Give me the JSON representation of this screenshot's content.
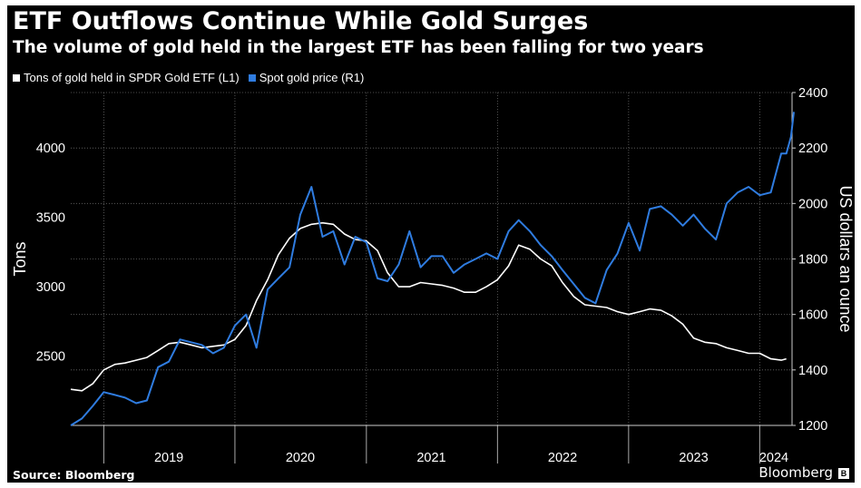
{
  "header": {
    "title": "ETF Outflows Continue While Gold Surges",
    "subtitle": "The volume of gold held in the largest ETF has been falling for two years"
  },
  "legend": [
    {
      "label": "Tons of gold held in SPDR Gold ETF  (L1)",
      "color": "#ffffff"
    },
    {
      "label": "Spot gold price (R1)",
      "color": "#2f7ce0"
    }
  ],
  "footer": {
    "source": "Source: Bloomberg",
    "brand": "Bloomberg"
  },
  "chart_data": {
    "type": "line",
    "title": "ETF Outflows Continue While Gold Surges",
    "subtitle": "The volume of gold held in the largest ETF has been falling for two years",
    "x_ticks": [
      "2019",
      "2020",
      "2021",
      "2022",
      "2023",
      "2024"
    ],
    "x_range": [
      "2018-10-01",
      "2024-03-31"
    ],
    "y_left": {
      "label": "Tons",
      "range": [
        2000,
        4400
      ],
      "ticks": [
        2500,
        3000,
        3500,
        4000
      ]
    },
    "y_right": {
      "label": "US dollars an ounce",
      "range": [
        1200,
        2400
      ],
      "ticks": [
        1200,
        1400,
        1600,
        1800,
        2000,
        2200,
        2400
      ]
    },
    "grid": true,
    "legend_position": "top-left",
    "series": [
      {
        "name": "Tons of gold held in SPDR Gold ETF  (L1)",
        "axis": "left",
        "color": "#ffffff",
        "points": [
          [
            "2018-10-01",
            2260
          ],
          [
            "2018-11-01",
            2250
          ],
          [
            "2018-12-01",
            2300
          ],
          [
            "2019-01-01",
            2400
          ],
          [
            "2019-02-01",
            2440
          ],
          [
            "2019-03-01",
            2450
          ],
          [
            "2019-04-01",
            2470
          ],
          [
            "2019-05-01",
            2490
          ],
          [
            "2019-06-01",
            2540
          ],
          [
            "2019-07-01",
            2590
          ],
          [
            "2019-08-01",
            2600
          ],
          [
            "2019-09-01",
            2580
          ],
          [
            "2019-10-01",
            2560
          ],
          [
            "2019-11-01",
            2570
          ],
          [
            "2019-12-01",
            2580
          ],
          [
            "2020-01-01",
            2620
          ],
          [
            "2020-02-01",
            2720
          ],
          [
            "2020-03-01",
            2900
          ],
          [
            "2020-04-01",
            3050
          ],
          [
            "2020-05-01",
            3230
          ],
          [
            "2020-06-01",
            3350
          ],
          [
            "2020-07-01",
            3420
          ],
          [
            "2020-08-01",
            3450
          ],
          [
            "2020-09-01",
            3460
          ],
          [
            "2020-10-01",
            3450
          ],
          [
            "2020-11-01",
            3380
          ],
          [
            "2020-12-01",
            3340
          ],
          [
            "2021-01-01",
            3330
          ],
          [
            "2021-02-01",
            3260
          ],
          [
            "2021-03-01",
            3100
          ],
          [
            "2021-04-01",
            3000
          ],
          [
            "2021-05-01",
            3000
          ],
          [
            "2021-06-01",
            3030
          ],
          [
            "2021-07-01",
            3020
          ],
          [
            "2021-08-01",
            3010
          ],
          [
            "2021-09-01",
            2990
          ],
          [
            "2021-10-01",
            2960
          ],
          [
            "2021-11-01",
            2960
          ],
          [
            "2021-12-01",
            3000
          ],
          [
            "2022-01-01",
            3050
          ],
          [
            "2022-02-01",
            3150
          ],
          [
            "2022-03-01",
            3300
          ],
          [
            "2022-04-01",
            3270
          ],
          [
            "2022-05-01",
            3200
          ],
          [
            "2022-06-01",
            3150
          ],
          [
            "2022-07-01",
            3030
          ],
          [
            "2022-08-01",
            2930
          ],
          [
            "2022-09-01",
            2870
          ],
          [
            "2022-10-01",
            2860
          ],
          [
            "2022-11-01",
            2850
          ],
          [
            "2022-12-01",
            2820
          ],
          [
            "2023-01-01",
            2800
          ],
          [
            "2023-02-01",
            2820
          ],
          [
            "2023-03-01",
            2840
          ],
          [
            "2023-04-01",
            2830
          ],
          [
            "2023-05-01",
            2790
          ],
          [
            "2023-06-01",
            2730
          ],
          [
            "2023-07-01",
            2630
          ],
          [
            "2023-08-01",
            2600
          ],
          [
            "2023-09-01",
            2590
          ],
          [
            "2023-10-01",
            2560
          ],
          [
            "2023-11-01",
            2540
          ],
          [
            "2023-12-01",
            2520
          ],
          [
            "2024-01-01",
            2520
          ],
          [
            "2024-02-01",
            2480
          ],
          [
            "2024-03-01",
            2470
          ],
          [
            "2024-03-15",
            2480
          ]
        ]
      },
      {
        "name": "Spot gold price (R1)",
        "axis": "right",
        "color": "#2f7ce0",
        "points": [
          [
            "2018-10-01",
            1200
          ],
          [
            "2018-11-01",
            1225
          ],
          [
            "2018-12-01",
            1270
          ],
          [
            "2019-01-01",
            1320
          ],
          [
            "2019-02-01",
            1310
          ],
          [
            "2019-03-01",
            1300
          ],
          [
            "2019-04-01",
            1280
          ],
          [
            "2019-05-01",
            1290
          ],
          [
            "2019-06-01",
            1410
          ],
          [
            "2019-07-01",
            1430
          ],
          [
            "2019-08-01",
            1510
          ],
          [
            "2019-09-01",
            1500
          ],
          [
            "2019-10-01",
            1490
          ],
          [
            "2019-11-01",
            1460
          ],
          [
            "2019-12-01",
            1480
          ],
          [
            "2020-01-01",
            1560
          ],
          [
            "2020-02-01",
            1600
          ],
          [
            "2020-03-01",
            1480
          ],
          [
            "2020-04-01",
            1690
          ],
          [
            "2020-05-01",
            1730
          ],
          [
            "2020-06-01",
            1770
          ],
          [
            "2020-07-01",
            1960
          ],
          [
            "2020-08-01",
            2060
          ],
          [
            "2020-09-01",
            1880
          ],
          [
            "2020-10-01",
            1900
          ],
          [
            "2020-11-01",
            1780
          ],
          [
            "2020-12-01",
            1880
          ],
          [
            "2021-01-01",
            1860
          ],
          [
            "2021-02-01",
            1730
          ],
          [
            "2021-03-01",
            1720
          ],
          [
            "2021-04-01",
            1780
          ],
          [
            "2021-05-01",
            1900
          ],
          [
            "2021-06-01",
            1770
          ],
          [
            "2021-07-01",
            1810
          ],
          [
            "2021-08-01",
            1810
          ],
          [
            "2021-09-01",
            1750
          ],
          [
            "2021-10-01",
            1780
          ],
          [
            "2021-11-01",
            1800
          ],
          [
            "2021-12-01",
            1820
          ],
          [
            "2022-01-01",
            1800
          ],
          [
            "2022-02-01",
            1900
          ],
          [
            "2022-03-01",
            1940
          ],
          [
            "2022-04-01",
            1900
          ],
          [
            "2022-05-01",
            1850
          ],
          [
            "2022-06-01",
            1810
          ],
          [
            "2022-07-01",
            1760
          ],
          [
            "2022-08-01",
            1710
          ],
          [
            "2022-09-01",
            1660
          ],
          [
            "2022-10-01",
            1640
          ],
          [
            "2022-11-01",
            1760
          ],
          [
            "2022-12-01",
            1820
          ],
          [
            "2023-01-01",
            1930
          ],
          [
            "2023-02-01",
            1830
          ],
          [
            "2023-03-01",
            1980
          ],
          [
            "2023-04-01",
            1990
          ],
          [
            "2023-05-01",
            1960
          ],
          [
            "2023-06-01",
            1920
          ],
          [
            "2023-07-01",
            1960
          ],
          [
            "2023-08-01",
            1910
          ],
          [
            "2023-09-01",
            1870
          ],
          [
            "2023-10-01",
            2000
          ],
          [
            "2023-11-01",
            2040
          ],
          [
            "2023-12-01",
            2060
          ],
          [
            "2024-01-01",
            2030
          ],
          [
            "2024-02-01",
            2040
          ],
          [
            "2024-03-01",
            2180
          ],
          [
            "2024-03-15",
            2180
          ],
          [
            "2024-03-28",
            2240
          ],
          [
            "2024-04-05",
            2330
          ]
        ]
      }
    ]
  }
}
